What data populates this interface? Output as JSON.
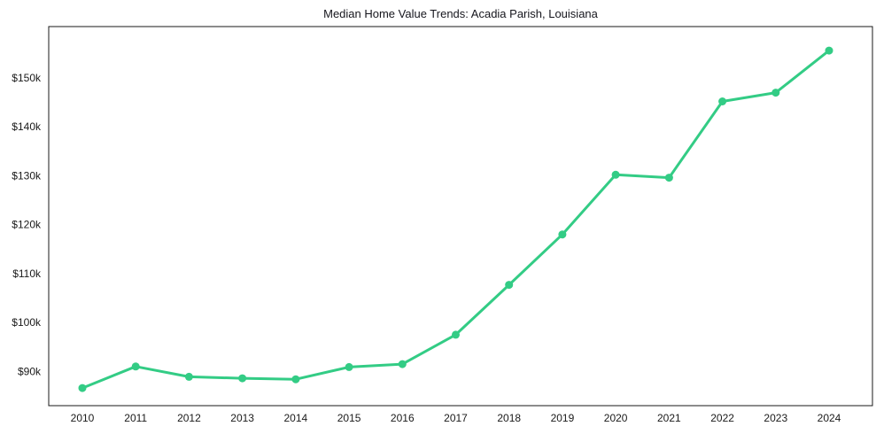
{
  "chart_data": {
    "type": "line",
    "title": "Median Home Value Trends: Acadia Parish, Louisiana",
    "xlabel": "",
    "ylabel": "",
    "categories": [
      "2010",
      "2011",
      "2012",
      "2013",
      "2014",
      "2015",
      "2016",
      "2017",
      "2018",
      "2019",
      "2020",
      "2021",
      "2022",
      "2023",
      "2024"
    ],
    "series": [
      {
        "name": "Median Home Value",
        "values": [
          86600,
          91000,
          88900,
          88600,
          88400,
          90900,
          91500,
          97500,
          107700,
          118000,
          130200,
          129600,
          145200,
          147000,
          155600
        ]
      }
    ],
    "ylim": [
      83000,
      160500
    ],
    "yticks": [
      90000,
      100000,
      110000,
      120000,
      130000,
      140000,
      150000
    ],
    "ytick_labels": [
      "$90k",
      "$100k",
      "$110k",
      "$120k",
      "$130k",
      "$140k",
      "$150k"
    ],
    "grid": false,
    "legend_position": "none",
    "line_color": "#33cc85",
    "marker_color": "#33cc85",
    "axis_color": "#1a1a1a",
    "tick_label_color": "#1a1a1a"
  }
}
